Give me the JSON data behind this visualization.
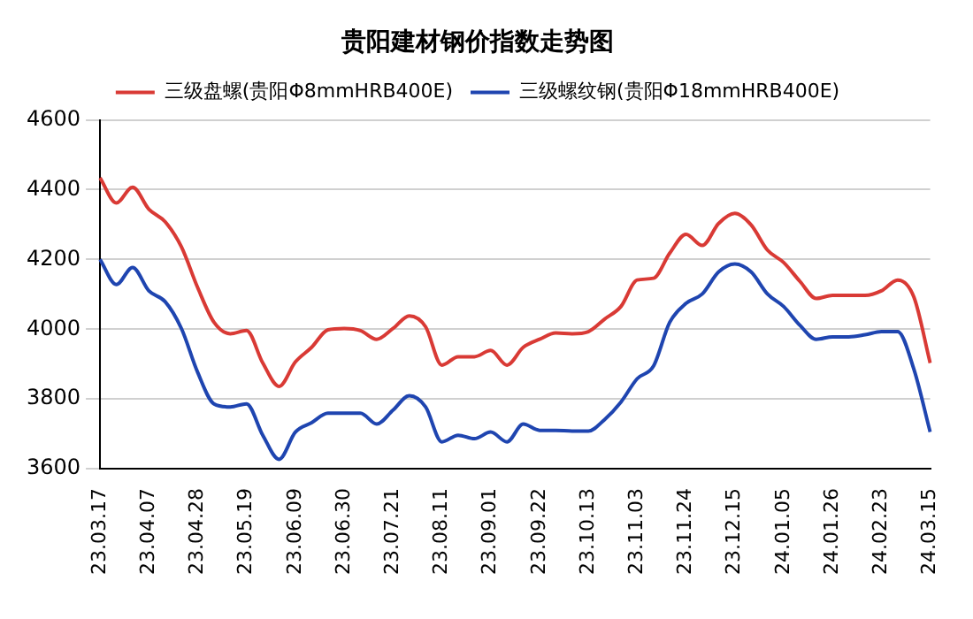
{
  "chart_data": {
    "type": "line",
    "title": "贵阳建材钢价指数走势图",
    "categories": [
      "23.03.17",
      null,
      null,
      "23.04.07",
      null,
      null,
      "23.04.28",
      null,
      null,
      "23.05.19",
      null,
      null,
      "23.06.09",
      null,
      null,
      "23.06.30",
      null,
      null,
      "23.07.21",
      null,
      null,
      "23.08.11",
      null,
      null,
      "23.09.01",
      null,
      null,
      "23.09.22",
      null,
      null,
      "23.10.13",
      null,
      null,
      "23.11.03",
      null,
      null,
      "23.11.24",
      null,
      null,
      "23.12.15",
      null,
      null,
      "24.01.05",
      null,
      null,
      "24.01.26",
      null,
      null,
      "24.02.23",
      null,
      null,
      "24.03.15"
    ],
    "series": [
      {
        "name": "三级盘螺(贵阳Φ8mmHRB400E)",
        "color": "#d93a35",
        "values": [
          4434,
          4362,
          4407,
          4344,
          4308,
          4236,
          4119,
          4020,
          3987,
          3996,
          3903,
          3836,
          3906,
          3948,
          3998,
          4002,
          3996,
          3971,
          4002,
          4038,
          4007,
          3897,
          3921,
          3921,
          3939,
          3897,
          3948,
          3971,
          3989,
          3987,
          3993,
          4029,
          4065,
          4141,
          4146,
          4218,
          4272,
          4240,
          4303,
          4332,
          4299,
          4227,
          4191,
          4137,
          4088,
          4097,
          4097,
          4097,
          4110,
          4141,
          4092,
          3903
        ]
      },
      {
        "name": "三级螺纹钢(贵阳Φ18mmHRB400E)",
        "color": "#1f45b0",
        "values": [
          4200,
          4128,
          4177,
          4110,
          4079,
          4002,
          3876,
          3786,
          3777,
          3786,
          3696,
          3627,
          3705,
          3732,
          3759,
          3759,
          3759,
          3728,
          3768,
          3809,
          3777,
          3677,
          3696,
          3686,
          3705,
          3677,
          3728,
          3710,
          3710,
          3708,
          3708,
          3741,
          3791,
          3858,
          3894,
          4020,
          4074,
          4101,
          4164,
          4187,
          4164,
          4101,
          4065,
          4011,
          3971,
          3978,
          3978,
          3984,
          3993,
          3993,
          3885,
          3705
        ]
      }
    ],
    "ylim": [
      3600,
      4600
    ],
    "yticks": [
      3600,
      3800,
      4000,
      4200,
      4400,
      4600
    ],
    "grid": "y",
    "legend": "top",
    "marker": "none",
    "line_style": "solid"
  }
}
